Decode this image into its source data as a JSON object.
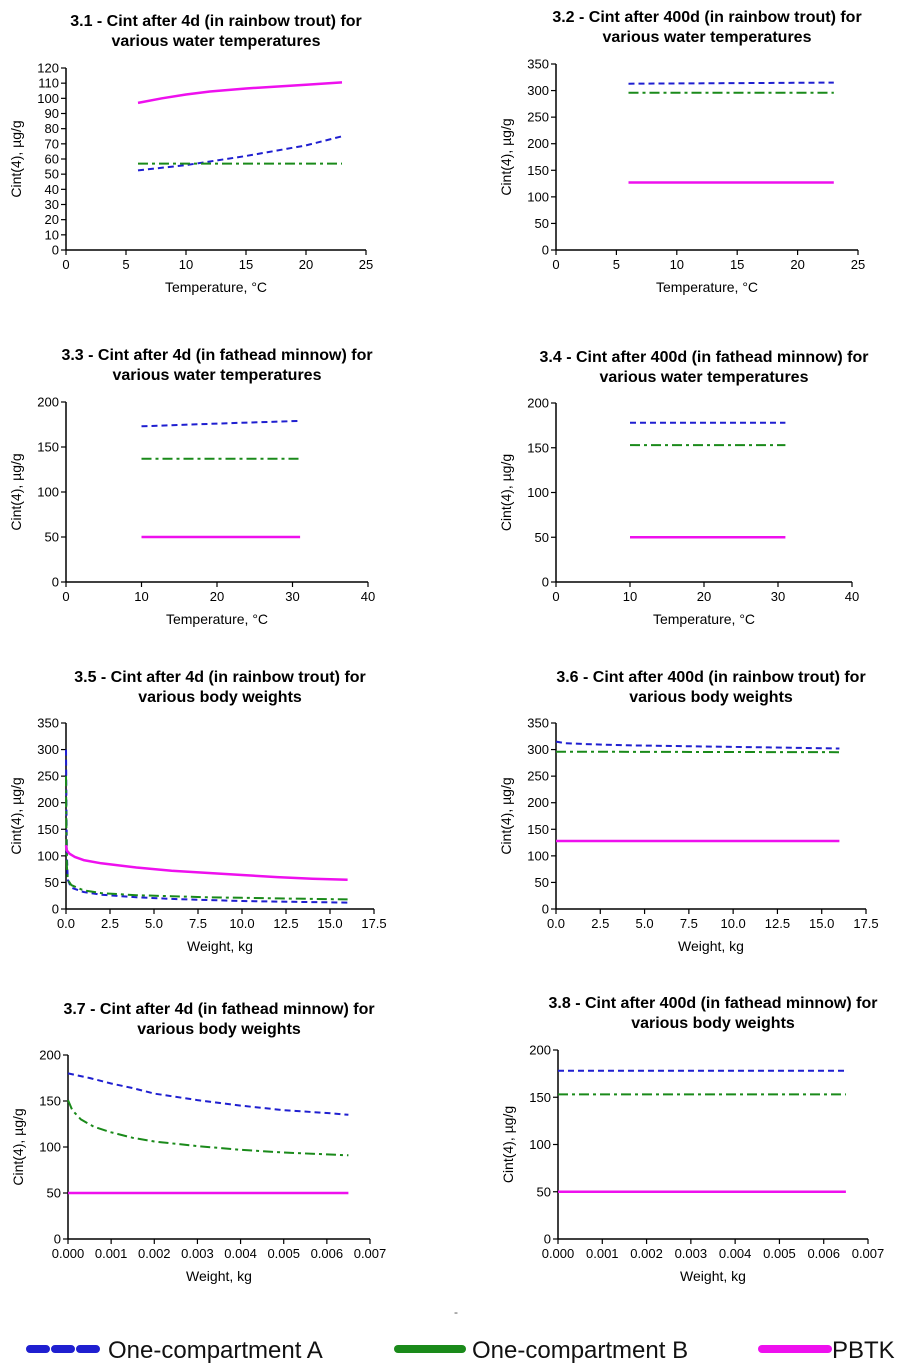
{
  "separator_mark": "-",
  "styles": {
    "oneA": {
      "color": "#1f1fd0",
      "dash": "6,4",
      "width": 2
    },
    "oneB": {
      "color": "#1a8a1a",
      "dash": "10,4,3,4",
      "width": 2
    },
    "pbtk": {
      "color": "#ee10ee",
      "dash": "",
      "width": 2.5
    }
  },
  "legend": [
    {
      "key": "oneA",
      "label": "One-compartment A"
    },
    {
      "key": "oneB",
      "label": "One-compartment B"
    },
    {
      "key": "pbtk",
      "label": "PBTK"
    }
  ],
  "chart_data": [
    {
      "type": "line",
      "title": [
        "3.1 - Cint after 4d (in rainbow trout) for",
        "various water temperatures"
      ],
      "xlabel": "Temperature, °C",
      "ylabel": "Cint(4), µg/g",
      "xlim": [
        0,
        25
      ],
      "ylim": [
        0,
        120
      ],
      "xticks": [
        0,
        5,
        10,
        15,
        20,
        25
      ],
      "xtick_labels": [
        "0",
        "5",
        "10",
        "15",
        "20",
        "25"
      ],
      "yticks": [
        0,
        10,
        20,
        30,
        40,
        50,
        60,
        70,
        80,
        90,
        100,
        110,
        120
      ],
      "ytick_labels": [
        "0",
        "10",
        "20",
        "30",
        "40",
        "50",
        "60",
        "70",
        "80",
        "90",
        "100",
        "110",
        "120"
      ],
      "series": [
        {
          "key": "oneA",
          "x": [
            6,
            10,
            15,
            20,
            23
          ],
          "y": [
            52.5,
            56,
            62,
            69,
            75
          ]
        },
        {
          "key": "oneB",
          "x": [
            6,
            23
          ],
          "y": [
            57,
            57
          ]
        },
        {
          "key": "pbtk",
          "x": [
            6,
            8,
            10,
            12,
            15,
            18,
            20,
            23
          ],
          "y": [
            97,
            100,
            102.5,
            104.5,
            106.5,
            108,
            109,
            110.5
          ]
        }
      ]
    },
    {
      "type": "line",
      "title": [
        "3.2 - Cint after 400d (in rainbow trout) for",
        "various water temperatures"
      ],
      "xlabel": "Temperature, °C",
      "ylabel": "Cint(4), µg/g",
      "xlim": [
        0,
        25
      ],
      "ylim": [
        0,
        350
      ],
      "xticks": [
        0,
        5,
        10,
        15,
        20,
        25
      ],
      "xtick_labels": [
        "0",
        "5",
        "10",
        "15",
        "20",
        "25"
      ],
      "yticks": [
        0,
        50,
        100,
        150,
        200,
        250,
        300,
        350
      ],
      "ytick_labels": [
        "0",
        "50",
        "100",
        "150",
        "200",
        "250",
        "300",
        "350"
      ],
      "series": [
        {
          "key": "oneA",
          "x": [
            6,
            23
          ],
          "y": [
            313,
            315
          ]
        },
        {
          "key": "oneB",
          "x": [
            6,
            23
          ],
          "y": [
            296,
            296
          ]
        },
        {
          "key": "pbtk",
          "x": [
            6,
            23
          ],
          "y": [
            127,
            127
          ]
        }
      ]
    },
    {
      "type": "line",
      "title": [
        "3.3 - Cint after 4d (in fathead minnow) for",
        "various water temperatures"
      ],
      "xlabel": "Temperature, °C",
      "ylabel": "Cint(4), µg/g",
      "xlim": [
        0,
        40
      ],
      "ylim": [
        0,
        200
      ],
      "xticks": [
        0,
        10,
        20,
        30,
        40
      ],
      "xtick_labels": [
        "0",
        "10",
        "20",
        "30",
        "40"
      ],
      "yticks": [
        0,
        50,
        100,
        150,
        200
      ],
      "ytick_labels": [
        "0",
        "50",
        "100",
        "150",
        "200"
      ],
      "series": [
        {
          "key": "oneA",
          "x": [
            10,
            20,
            31
          ],
          "y": [
            173,
            176,
            179
          ]
        },
        {
          "key": "oneB",
          "x": [
            10,
            31
          ],
          "y": [
            137,
            137
          ]
        },
        {
          "key": "pbtk",
          "x": [
            10,
            31
          ],
          "y": [
            50,
            50
          ]
        }
      ]
    },
    {
      "type": "line",
      "title": [
        "3.4 - Cint after 400d (in fathead minnow) for",
        "various water temperatures"
      ],
      "xlabel": "Temperature, °C",
      "ylabel": "Cint(4), µg/g",
      "xlim": [
        0,
        40
      ],
      "ylim": [
        0,
        200
      ],
      "xticks": [
        0,
        10,
        20,
        30,
        40
      ],
      "xtick_labels": [
        "0",
        "10",
        "20",
        "30",
        "40"
      ],
      "yticks": [
        0,
        50,
        100,
        150,
        200
      ],
      "ytick_labels": [
        "0",
        "50",
        "100",
        "150",
        "200"
      ],
      "series": [
        {
          "key": "oneA",
          "x": [
            10,
            31
          ],
          "y": [
            178,
            178
          ]
        },
        {
          "key": "oneB",
          "x": [
            10,
            31
          ],
          "y": [
            153,
            153
          ]
        },
        {
          "key": "pbtk",
          "x": [
            10,
            31
          ],
          "y": [
            50,
            50
          ]
        }
      ]
    },
    {
      "type": "line",
      "title": [
        "3.5 - Cint after 4d (in rainbow trout) for",
        "various body weights"
      ],
      "xlabel": "Weight, kg",
      "ylabel": "Cint(4), µg/g",
      "xlim": [
        0,
        17.5
      ],
      "ylim": [
        0,
        350
      ],
      "xticks": [
        0,
        2.5,
        5,
        7.5,
        10,
        12.5,
        15,
        17.5
      ],
      "xtick_labels": [
        "0.0",
        "2.5",
        "5.0",
        "7.5",
        "10.0",
        "12.5",
        "15.0",
        "17.5"
      ],
      "yticks": [
        0,
        50,
        100,
        150,
        200,
        250,
        300,
        350
      ],
      "ytick_labels": [
        "0",
        "50",
        "100",
        "150",
        "200",
        "250",
        "300",
        "350"
      ],
      "series": [
        {
          "key": "oneA",
          "x": [
            0.0,
            0.02,
            0.05,
            0.1,
            0.3,
            1,
            2,
            4,
            6,
            8,
            10,
            12,
            14,
            16
          ],
          "y": [
            300,
            200,
            100,
            55,
            40,
            32,
            27,
            22,
            19,
            17,
            15,
            14,
            13,
            12
          ]
        },
        {
          "key": "oneB",
          "x": [
            0.0,
            0.02,
            0.05,
            0.1,
            0.3,
            1,
            2,
            4,
            6,
            8,
            10,
            12,
            14,
            16
          ],
          "y": [
            250,
            150,
            80,
            55,
            45,
            35,
            30,
            26,
            24,
            22,
            21,
            20,
            19,
            18
          ]
        },
        {
          "key": "pbtk",
          "x": [
            0.0,
            0.05,
            0.2,
            0.5,
            1,
            2,
            4,
            6,
            8,
            10,
            12,
            14,
            16
          ],
          "y": [
            120,
            110,
            104,
            98,
            92,
            86,
            78,
            72,
            68,
            64,
            60,
            57,
            55
          ]
        }
      ]
    },
    {
      "type": "line",
      "title": [
        "3.6 - Cint after 400d (in rainbow trout) for",
        "various body weights"
      ],
      "xlabel": "Weight, kg",
      "ylabel": "Cint(4), µg/g",
      "xlim": [
        0,
        17.5
      ],
      "ylim": [
        0,
        350
      ],
      "xticks": [
        0,
        2.5,
        5,
        7.5,
        10,
        12.5,
        15,
        17.5
      ],
      "xtick_labels": [
        "0.0",
        "2.5",
        "5.0",
        "7.5",
        "10.0",
        "12.5",
        "15.0",
        "17.5"
      ],
      "yticks": [
        0,
        50,
        100,
        150,
        200,
        250,
        300,
        350
      ],
      "ytick_labels": [
        "0",
        "50",
        "100",
        "150",
        "200",
        "250",
        "300",
        "350"
      ],
      "series": [
        {
          "key": "oneA",
          "x": [
            0,
            0.5,
            2,
            4,
            8,
            12,
            16
          ],
          "y": [
            315,
            312,
            310,
            308,
            306,
            304,
            302
          ]
        },
        {
          "key": "oneB",
          "x": [
            0,
            16
          ],
          "y": [
            296,
            295
          ]
        },
        {
          "key": "pbtk",
          "x": [
            0,
            16
          ],
          "y": [
            128,
            128
          ]
        }
      ]
    },
    {
      "type": "line",
      "title": [
        "3.7 - Cint after 4d (in fathead minnow) for",
        "various body weights"
      ],
      "xlabel": "Weight, kg",
      "ylabel": "Cint(4), µg/g",
      "xlim": [
        0,
        0.007
      ],
      "ylim": [
        0,
        200
      ],
      "xticks": [
        0,
        0.001,
        0.002,
        0.003,
        0.004,
        0.005,
        0.006,
        0.007
      ],
      "xtick_labels": [
        "0.000",
        "0.001",
        "0.002",
        "0.003",
        "0.004",
        "0.005",
        "0.006",
        "0.007"
      ],
      "yticks": [
        0,
        50,
        100,
        150,
        200
      ],
      "ytick_labels": [
        "0",
        "50",
        "100",
        "150",
        "200"
      ],
      "series": [
        {
          "key": "oneA",
          "x": [
            0,
            0.0005,
            0.001,
            0.0015,
            0.002,
            0.003,
            0.004,
            0.005,
            0.006,
            0.0065
          ],
          "y": [
            180,
            175,
            169,
            164,
            158,
            151,
            145,
            140,
            137,
            135
          ]
        },
        {
          "key": "oneB",
          "x": [
            0,
            0.0001,
            0.0003,
            0.0006,
            0.001,
            0.0015,
            0.002,
            0.003,
            0.004,
            0.005,
            0.006,
            0.0065
          ],
          "y": [
            151,
            140,
            130,
            122,
            116,
            110,
            106,
            101,
            97,
            94,
            92,
            91
          ]
        },
        {
          "key": "pbtk",
          "x": [
            0,
            0.0065
          ],
          "y": [
            50,
            50
          ]
        }
      ]
    },
    {
      "type": "line",
      "title": [
        "3.8 - Cint after 400d (in fathead minnow) for",
        "various body weights"
      ],
      "xlabel": "Weight, kg",
      "ylabel": "Cint(4), µg/g",
      "xlim": [
        0,
        0.007
      ],
      "ylim": [
        0,
        200
      ],
      "xticks": [
        0,
        0.001,
        0.002,
        0.003,
        0.004,
        0.005,
        0.006,
        0.007
      ],
      "xtick_labels": [
        "0.000",
        "0.001",
        "0.002",
        "0.003",
        "0.004",
        "0.005",
        "0.006",
        "0.007"
      ],
      "yticks": [
        0,
        50,
        100,
        150,
        200
      ],
      "ytick_labels": [
        "0",
        "50",
        "100",
        "150",
        "200"
      ],
      "series": [
        {
          "key": "oneA",
          "x": [
            0,
            0.0065
          ],
          "y": [
            178,
            178
          ]
        },
        {
          "key": "oneB",
          "x": [
            0,
            0.0065
          ],
          "y": [
            153,
            153
          ]
        },
        {
          "key": "pbtk",
          "x": [
            0,
            0.0065
          ],
          "y": [
            50,
            50
          ]
        }
      ]
    }
  ]
}
